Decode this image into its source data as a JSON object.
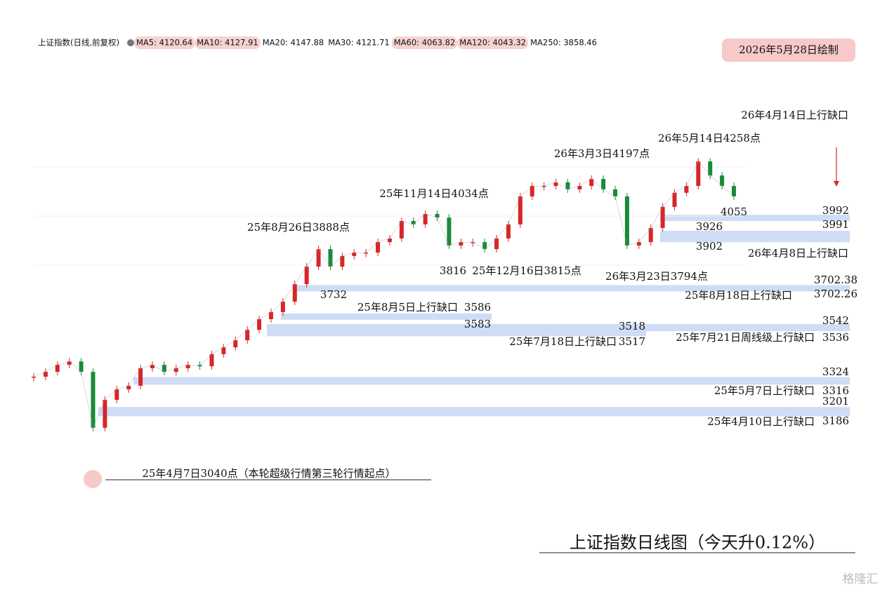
{
  "chart_data": {
    "type": "candlestick",
    "title": "上证指数日线图（今天升0.12%）",
    "subtitle": "2026年5月28日绘制",
    "watermark": "格隆汇",
    "header": "上证指数(日线,前复权)",
    "ma_legend": [
      {
        "text": "MA5: 4120.64",
        "color": "#c0392b",
        "highlight": true
      },
      {
        "text": "MA10: 4127.91",
        "color": "#4a6fd0",
        "highlight": true
      },
      {
        "text": "MA20: 4147.88",
        "color": "#8e2a8e",
        "highlight": false
      },
      {
        "text": "MA30: 4121.71",
        "color": "#777777",
        "highlight": false
      },
      {
        "text": "MA60: 4063.82",
        "color": "#7a6a00",
        "highlight": true
      },
      {
        "text": "MA120: 4043.32",
        "color": "#3aa3c8",
        "highlight": true
      },
      {
        "text": "MA250: 3858.46",
        "color": "#333333",
        "highlight": false
      }
    ],
    "ylim": [
      3040,
      4258
    ],
    "series": [
      {
        "name": "上证指数",
        "up_color": "#d62728",
        "down_color": "#1a8a3a",
        "values": [
          3337,
          3357,
          3386,
          3400,
          3357,
          3127,
          3242,
          3285,
          3300,
          3372,
          3386,
          3357,
          3372,
          3386,
          3380,
          3430,
          3458,
          3487,
          3530,
          3574,
          3603,
          3646,
          3718,
          3790,
          3862,
          3790,
          3834,
          3848,
          3848,
          3891,
          3906,
          3978,
          3964,
          4007,
          3992,
          3877,
          3891,
          3891,
          3862,
          3906,
          3964,
          4079,
          4122,
          4122,
          4137,
          4108,
          4122,
          4151,
          4108,
          4079,
          3877,
          3891,
          3949,
          4036,
          4094,
          4122,
          4223,
          4165,
          4122,
          4079
        ]
      }
    ],
    "gaps": [
      {
        "label": "26年4月14日上行缺口",
        "high": 3992,
        "low": 3991
      },
      {
        "label": "26年4月8日上行缺口",
        "high": 3926,
        "low": 3902
      },
      {
        "label": "25年8月18日上行缺口",
        "high": {
          "value": 3702.38,
          "label": "3702.38"
        },
        "low": {
          "value": 3702.26,
          "label": "3702.26"
        }
      },
      {
        "label": "25年8月5日上行缺口",
        "high": 3586,
        "low": 3583
      },
      {
        "label": "25年7月18日上行缺口",
        "high": 3518,
        "low": 3517
      },
      {
        "label": "25年7月21日周线级上行缺口",
        "high": 3542,
        "low": 3536
      },
      {
        "label": "25年5月7日上行缺口",
        "high": 3324,
        "low": 3316
      },
      {
        "label": "25年4月10日上行缺口",
        "high": 3201,
        "low": 3186
      }
    ],
    "annotations": [
      "25年8月26日3888点",
      "25年11月14日4034点",
      "26年3月3日4197点",
      "26年5月14日4258点",
      "3816",
      "25年12月16日3815点",
      "26年3月23日3794点",
      "3732",
      "4055",
      "25年4月7日3040点（本轮超级行情第三轮行情起点）"
    ]
  }
}
